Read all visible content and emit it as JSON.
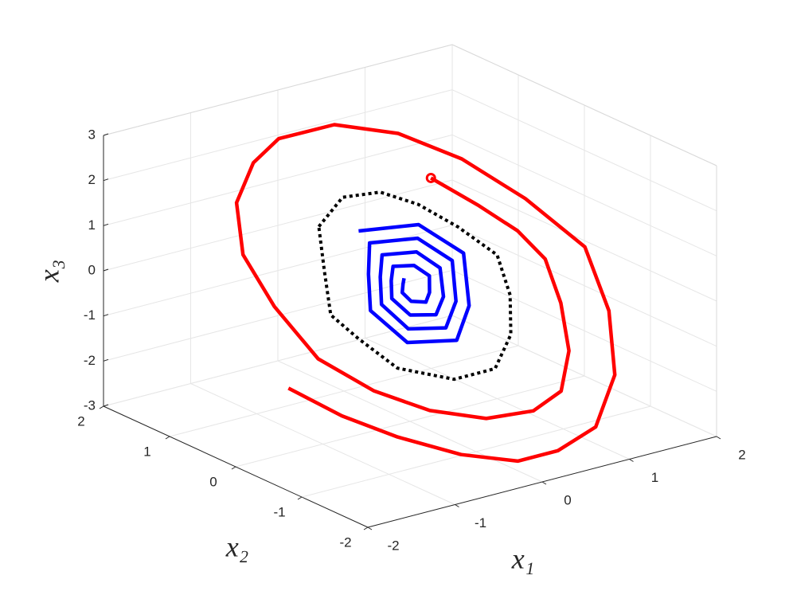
{
  "chart_data": {
    "type": "line3d",
    "xlabel": "x₁",
    "ylabel": "x₂",
    "zlabel": "x₃",
    "xlim": [
      -2,
      2
    ],
    "ylim": [
      -2,
      2
    ],
    "zlim": [
      -3,
      3
    ],
    "xticks": [
      -2,
      -1,
      0,
      1,
      2
    ],
    "yticks": [
      -2,
      -1,
      0,
      1,
      2
    ],
    "zticks": [
      -3,
      -2,
      -1,
      0,
      1,
      2,
      3
    ],
    "grid": true,
    "series": [
      {
        "color": "#ff0000",
        "line_style": "solid",
        "start_marker": "o",
        "x": [
          0.99,
          1.24,
          1.43,
          1.49,
          1.32,
          1.05,
          0.68,
          0.27,
          -0.24,
          -0.72,
          -1.11,
          -1.41,
          -1.45,
          -1.37,
          -1.05,
          -0.6,
          -0.18,
          0.45,
          1.0,
          1.42,
          1.74,
          1.96,
          1.72,
          1.31,
          0.75,
          0.21,
          -0.25,
          -0.74,
          -1.22,
          -1.6,
          -1.91
        ],
        "y": [
          0.99,
          0.61,
          0.26,
          -0.08,
          -0.54,
          -1.02,
          -1.39,
          -1.51,
          -1.47,
          -1.25,
          -0.92,
          -0.47,
          0.14,
          0.72,
          1.24,
          1.58,
          1.75,
          1.74,
          1.5,
          1.09,
          0.55,
          -0.06,
          -0.74,
          -1.37,
          -1.82,
          -1.96,
          -1.96,
          -1.75,
          -1.42,
          -1.08,
          -0.68
        ],
        "z": [
          1.23,
          0.76,
          0.33,
          -0.1,
          -0.68,
          -1.28,
          -1.74,
          -1.89,
          -1.83,
          -1.56,
          -1.15,
          -0.59,
          0.18,
          0.9,
          1.54,
          1.97,
          2.18,
          2.18,
          1.87,
          1.37,
          0.69,
          -0.08,
          -0.92,
          -1.71,
          -2.28,
          -2.44,
          -2.44,
          -2.19,
          -1.78,
          -1.35,
          -0.85
        ]
      },
      {
        "color": "#000000",
        "line_style": "dotted",
        "start_marker": null,
        "x": [
          -0.44,
          0.0,
          0.4,
          0.67,
          0.89,
          1.06,
          0.89,
          0.61,
          0.21,
          -0.26,
          -0.72,
          -0.88,
          -0.97,
          -0.71,
          -0.44
        ],
        "y": [
          0.8,
          1.02,
          0.98,
          0.76,
          0.45,
          0.08,
          -0.34,
          -0.72,
          -1.01,
          -1.01,
          -0.76,
          -0.38,
          -0.08,
          0.36,
          0.8
        ],
        "z": [
          1.0,
          1.28,
          1.22,
          0.96,
          0.56,
          0.1,
          -0.42,
          -0.9,
          -1.26,
          -1.26,
          -0.95,
          -0.47,
          -0.1,
          0.45,
          1.0
        ]
      },
      {
        "color": "#0000ff",
        "line_style": "solid",
        "start_marker": null,
        "x": [
          -0.09,
          0.53,
          0.75,
          0.42,
          0.05,
          -0.44,
          -0.56,
          -0.31,
          -0.07,
          0.42,
          0.59,
          0.33,
          0.04,
          -0.33,
          -0.41,
          -0.22,
          -0.04,
          0.31,
          0.42,
          0.24,
          0.04,
          -0.21,
          -0.27,
          -0.14,
          -0.02,
          0.19,
          0.26,
          0.14,
          0.03,
          -0.1,
          -0.12,
          -0.05,
          0.0
        ],
        "y": [
          0.66,
          0.57,
          0.18,
          -0.34,
          -0.64,
          -0.54,
          -0.14,
          0.22,
          0.52,
          0.44,
          0.14,
          -0.26,
          -0.49,
          -0.41,
          -0.11,
          0.16,
          0.37,
          0.31,
          0.1,
          -0.19,
          -0.34,
          -0.28,
          -0.08,
          0.1,
          0.23,
          0.19,
          0.05,
          -0.11,
          -0.2,
          -0.15,
          -0.04,
          0.04,
          0.09
        ],
        "z": [
          0.82,
          0.71,
          0.23,
          -0.42,
          -0.8,
          -0.67,
          -0.17,
          0.27,
          0.64,
          0.55,
          0.17,
          -0.33,
          -0.62,
          -0.51,
          -0.13,
          0.2,
          0.46,
          0.39,
          0.12,
          -0.23,
          -0.43,
          -0.35,
          -0.09,
          0.12,
          0.29,
          0.23,
          0.06,
          -0.14,
          -0.24,
          -0.19,
          -0.06,
          0.04,
          0.11
        ]
      }
    ]
  }
}
